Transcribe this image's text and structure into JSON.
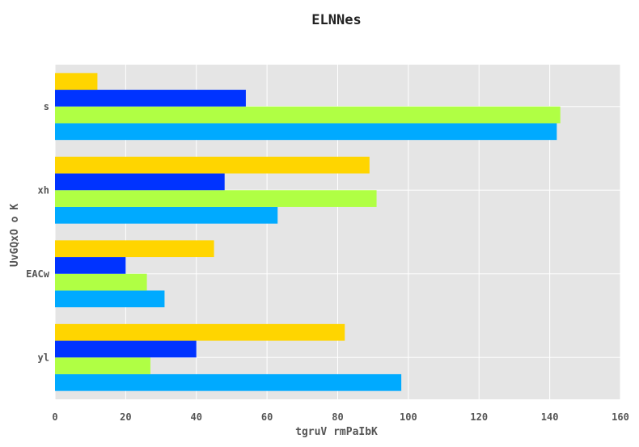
{
  "chart_data": {
    "type": "bar",
    "orientation": "horizontal",
    "title": "ELNNes",
    "xlabel": "tgruV rmPaIbK",
    "ylabel": "UvGQxO o K",
    "categories": [
      "yl",
      "EACw",
      "xh",
      "s"
    ],
    "xlim": [
      0,
      160
    ],
    "xticks": [
      0,
      20,
      40,
      60,
      80,
      100,
      120,
      140,
      160
    ],
    "grid": true,
    "legend": "none",
    "series": [
      {
        "color": "#00AAFF",
        "values": [
          98,
          31,
          63,
          142
        ]
      },
      {
        "color": "#B0FF44",
        "values": [
          27,
          26,
          91,
          143
        ]
      },
      {
        "color": "#0033FF",
        "values": [
          40,
          20,
          48,
          54
        ]
      },
      {
        "color": "#FFD500",
        "values": [
          82,
          45,
          89,
          12
        ]
      }
    ]
  }
}
